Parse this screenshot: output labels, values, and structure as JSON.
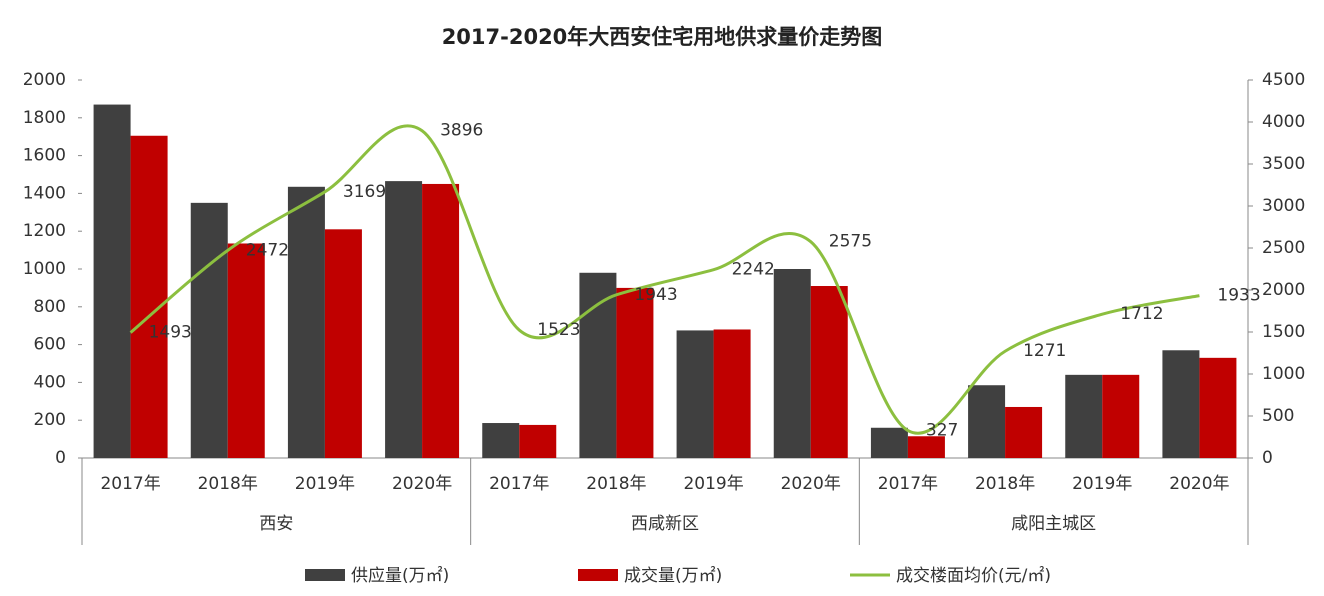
{
  "chart_data": {
    "type": "bar",
    "title": "2017-2020年大西安住宅用地供求量价走势图",
    "categories": [
      "2017年",
      "2018年",
      "2019年",
      "2020年",
      "2017年",
      "2018年",
      "2019年",
      "2020年",
      "2017年",
      "2018年",
      "2019年",
      "2020年"
    ],
    "groups": [
      "西安",
      "西咸新区",
      "咸阳主城区"
    ],
    "series": [
      {
        "name": "供应量(万㎡)",
        "color": "#404040",
        "values": [
          1870,
          1350,
          1435,
          1465,
          185,
          980,
          675,
          1000,
          160,
          385,
          440,
          570
        ]
      },
      {
        "name": "成交量(万㎡)",
        "color": "#c00000",
        "values": [
          1705,
          1135,
          1210,
          1450,
          175,
          900,
          680,
          910,
          115,
          270,
          440,
          530
        ]
      },
      {
        "name": "成交楼面均价(元/㎡)",
        "color": "#8cbf3f",
        "axis": "y2",
        "type": "line",
        "values": [
          1493,
          2472,
          3169,
          3896,
          1523,
          1943,
          2242,
          2575,
          327,
          1271,
          1712,
          1933
        ]
      }
    ],
    "ylim": [
      0,
      2000
    ],
    "yticks": [
      0,
      200,
      400,
      600,
      800,
      1000,
      1200,
      1400,
      1600,
      1800,
      2000
    ],
    "y2lim": [
      0,
      4500
    ],
    "y2ticks": [
      0,
      500,
      1000,
      1500,
      2000,
      2500,
      3000,
      3500,
      4000,
      4500
    ],
    "legend": "bottom",
    "grid": false
  }
}
